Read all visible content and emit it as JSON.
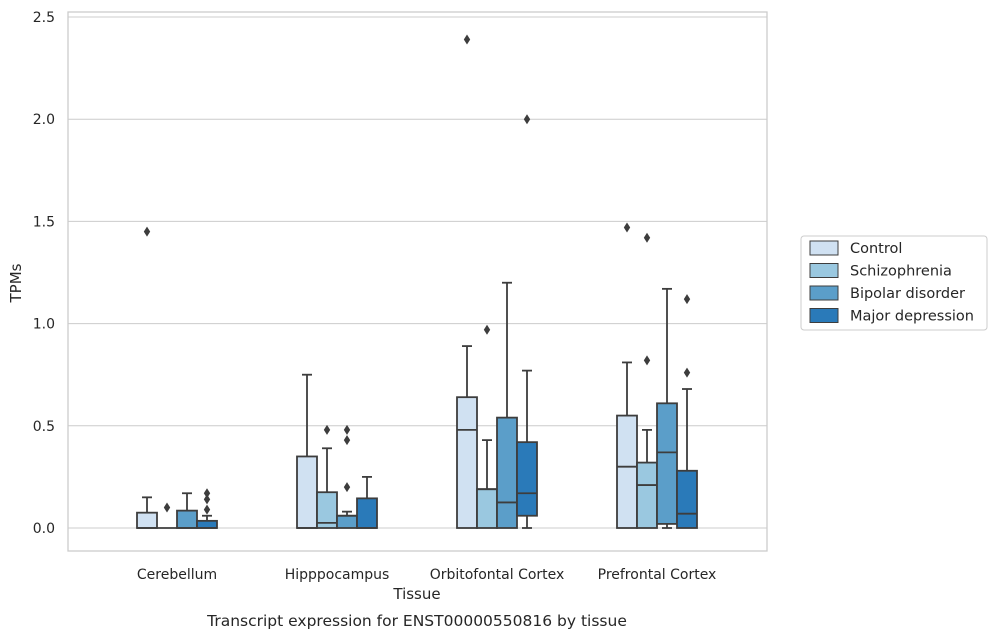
{
  "chart_data": {
    "type": "box",
    "caption": "Transcript expression for ENST00000550816 by tissue",
    "xlabel": "Tissue",
    "ylabel": "TPMs",
    "ylim": [
      -0.11,
      2.51
    ],
    "yticks": [
      "0.0",
      "0.5",
      "1.0",
      "1.5",
      "2.0",
      "2.5"
    ],
    "grid": "horizontal",
    "legend_position": "right",
    "categories": [
      "Cerebellum",
      "Hipppocampus",
      "Orbitofontal Cortex",
      "Prefrontal Cortex"
    ],
    "series": [
      {
        "name": "Control",
        "color": "#d0e1f2",
        "boxes": [
          {
            "whisker_low": 0.0,
            "q1": 0.0,
            "median": 0.0,
            "q3": 0.075,
            "whisker_high": 0.15,
            "outliers": [
              1.45
            ]
          },
          {
            "whisker_low": 0.0,
            "q1": 0.0,
            "median": 0.0,
            "q3": 0.35,
            "whisker_high": 0.75,
            "outliers": []
          },
          {
            "whisker_low": 0.0,
            "q1": 0.0,
            "median": 0.48,
            "q3": 0.64,
            "whisker_high": 0.89,
            "outliers": [
              2.39
            ]
          },
          {
            "whisker_low": 0.0,
            "q1": 0.0,
            "median": 0.3,
            "q3": 0.55,
            "whisker_high": 0.81,
            "outliers": [
              1.47
            ]
          }
        ]
      },
      {
        "name": "Schizophrenia",
        "color": "#9ac8e0",
        "boxes": [
          {
            "whisker_low": 0.0,
            "q1": 0.0,
            "median": 0.0,
            "q3": 0.0,
            "whisker_high": 0.0,
            "outliers": [
              0.1
            ]
          },
          {
            "whisker_low": 0.0,
            "q1": 0.0,
            "median": 0.025,
            "q3": 0.175,
            "whisker_high": 0.39,
            "outliers": [
              0.48
            ]
          },
          {
            "whisker_low": 0.0,
            "q1": 0.0,
            "median": 0.19,
            "q3": 0.19,
            "whisker_high": 0.43,
            "outliers": [
              0.97
            ]
          },
          {
            "whisker_low": 0.0,
            "q1": 0.0,
            "median": 0.21,
            "q3": 0.32,
            "whisker_high": 0.48,
            "outliers": [
              0.82,
              1.42
            ]
          }
        ]
      },
      {
        "name": "Bipolar disorder",
        "color": "#5b9ec9",
        "boxes": [
          {
            "whisker_low": 0.0,
            "q1": 0.0,
            "median": 0.0,
            "q3": 0.085,
            "whisker_high": 0.17,
            "outliers": []
          },
          {
            "whisker_low": 0.0,
            "q1": 0.0,
            "median": 0.06,
            "q3": 0.06,
            "whisker_high": 0.08,
            "outliers": [
              0.2,
              0.43,
              0.48
            ]
          },
          {
            "whisker_low": 0.0,
            "q1": 0.0,
            "median": 0.125,
            "q3": 0.54,
            "whisker_high": 1.2,
            "outliers": []
          },
          {
            "whisker_low": 0.0,
            "q1": 0.02,
            "median": 0.37,
            "q3": 0.61,
            "whisker_high": 1.17,
            "outliers": []
          }
        ]
      },
      {
        "name": "Major depression",
        "color": "#2a7ab9",
        "boxes": [
          {
            "whisker_low": 0.0,
            "q1": 0.0,
            "median": 0.0,
            "q3": 0.035,
            "whisker_high": 0.06,
            "outliers": [
              0.09,
              0.14,
              0.17
            ]
          },
          {
            "whisker_low": 0.0,
            "q1": 0.0,
            "median": 0.0,
            "q3": 0.145,
            "whisker_high": 0.25,
            "outliers": []
          },
          {
            "whisker_low": 0.0,
            "q1": 0.06,
            "median": 0.17,
            "q3": 0.42,
            "whisker_high": 0.77,
            "outliers": [
              2.0
            ]
          },
          {
            "whisker_low": 0.0,
            "q1": 0.0,
            "median": 0.07,
            "q3": 0.28,
            "whisker_high": 0.68,
            "outliers": [
              0.76,
              1.12
            ]
          }
        ]
      }
    ]
  }
}
